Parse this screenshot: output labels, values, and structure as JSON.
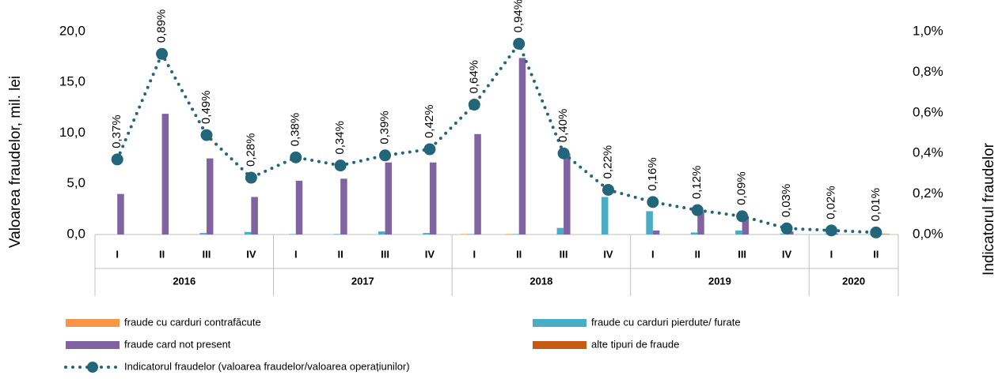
{
  "chart_data": {
    "type": "bar",
    "categories": [
      "I",
      "II",
      "III",
      "IV",
      "I",
      "II",
      "III",
      "IV",
      "I",
      "II",
      "III",
      "IV",
      "I",
      "II",
      "III",
      "IV",
      "I",
      "II"
    ],
    "groups": [
      {
        "name": "2016",
        "span": 4
      },
      {
        "name": "2017",
        "span": 4
      },
      {
        "name": "2018",
        "span": 4
      },
      {
        "name": "2019",
        "span": 4
      },
      {
        "name": "2020",
        "span": 2
      }
    ],
    "ylabel": "Valoarea fraudelor, mil. lei",
    "y2label": "Indicatorul fraudelor",
    "ylim": [
      0,
      20
    ],
    "yticks": [
      {
        "value": 0,
        "label": "0,0"
      },
      {
        "value": 5,
        "label": "5,0"
      },
      {
        "value": 10,
        "label": "10,0"
      },
      {
        "value": 15,
        "label": "15,0"
      },
      {
        "value": 20,
        "label": "20,0"
      }
    ],
    "y2lim": [
      0,
      1
    ],
    "y2ticks": [
      {
        "value": 0,
        "label": "0,0%"
      },
      {
        "value": 0.2,
        "label": "0,2%"
      },
      {
        "value": 0.4,
        "label": "0,4%"
      },
      {
        "value": 0.6,
        "label": "0,6%"
      },
      {
        "value": 0.8,
        "label": "0,8%"
      },
      {
        "value": 1,
        "label": "1,0%"
      }
    ],
    "series": [
      {
        "name": "fraude cu carduri contrafăcute",
        "color": "#f79646",
        "values": [
          0,
          0,
          0,
          0,
          0,
          0,
          0,
          0,
          0.05,
          0.05,
          0,
          0,
          0,
          0,
          0,
          0,
          0,
          0
        ]
      },
      {
        "name": "fraude cu carduri pierdute/ furate",
        "color": "#4bacc6",
        "values": [
          0,
          0,
          0.15,
          0.25,
          0.05,
          0.05,
          0.3,
          0.15,
          0.05,
          0.05,
          0.65,
          3.7,
          2.3,
          0.2,
          0.4,
          0.1,
          0.05,
          0.05
        ]
      },
      {
        "name": "fraude card not present",
        "color": "#8064a2",
        "values": [
          4.0,
          11.9,
          7.5,
          3.7,
          5.3,
          5.5,
          7.1,
          7.1,
          9.9,
          17.4,
          8.0,
          0,
          0.4,
          2.2,
          1.8,
          0.3,
          0.1,
          0.1
        ]
      },
      {
        "name": "alte tipuri de fraude",
        "color": "#c55a11",
        "values": [
          0,
          0,
          0,
          0,
          0,
          0,
          0,
          0,
          0,
          0,
          0,
          0,
          0,
          0,
          0,
          0,
          0,
          0.05
        ]
      },
      {
        "name": "Indicatorul fraudelor (valoarea fraudelor/valoarea operațiunilor)",
        "color": "#23667a",
        "type": "line",
        "axis": "y2",
        "values": [
          0.37,
          0.89,
          0.49,
          0.28,
          0.38,
          0.34,
          0.39,
          0.42,
          0.64,
          0.94,
          0.4,
          0.22,
          0.16,
          0.12,
          0.09,
          0.03,
          0.02,
          0.01
        ],
        "value_labels": [
          "0,37%",
          "0,89%",
          "0,49%",
          "0,28%",
          "0,38%",
          "0,34%",
          "0,39%",
          "0,42%",
          "0,64%",
          "0,94%",
          "0,40%",
          "0,22%",
          "0,16%",
          "0,12%",
          "0,09%",
          "0,03%",
          "0,02%",
          "0,01%"
        ]
      }
    ]
  }
}
